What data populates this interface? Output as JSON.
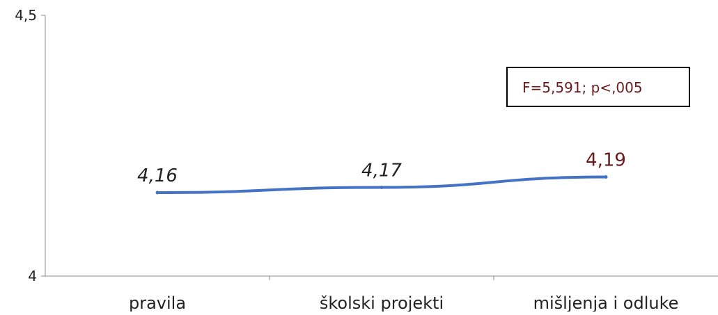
{
  "chart_data": {
    "type": "line",
    "title": "",
    "xlabel": "",
    "ylabel": "",
    "categories": [
      "pravila",
      "školski projekti",
      "mišljenja i odluke"
    ],
    "series": [
      {
        "values": [
          4.16,
          4.17,
          4.19
        ],
        "color": "#4472c4"
      }
    ],
    "data_labels": [
      "4,16",
      "4,17",
      "4,19"
    ],
    "data_label_styles": [
      {
        "color": "#222222",
        "italic": true
      },
      {
        "color": "#222222",
        "italic": true
      },
      {
        "color": "#6b1a1a",
        "italic": false
      }
    ],
    "ylim": [
      4,
      4.5
    ],
    "y_ticks": [
      {
        "value": 4,
        "label": "4"
      },
      {
        "value": 4.5,
        "label": "4,5"
      }
    ],
    "grid": false,
    "legend": "none",
    "annotation": {
      "text": "F=5,591; p<,005",
      "color": "#6b1a1a"
    }
  }
}
